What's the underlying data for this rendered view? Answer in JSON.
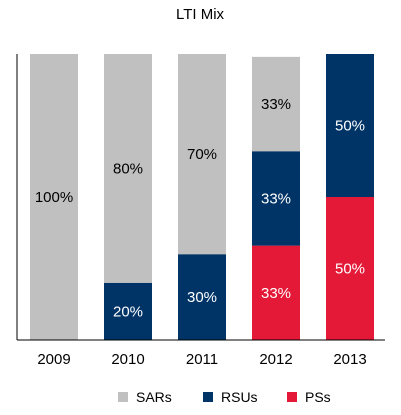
{
  "chart_data": {
    "type": "bar",
    "stacked": true,
    "percent_stacked": true,
    "title": "LTI Mix",
    "xlabel": "",
    "ylabel": "",
    "ylim": [
      0,
      100
    ],
    "grid": false,
    "legend_position": "bottom",
    "categories": [
      "2009",
      "2010",
      "2011",
      "2012",
      "2013"
    ],
    "series": [
      {
        "name": "PSs",
        "color": "#e31937",
        "values": [
          0,
          0,
          0,
          33,
          50
        ],
        "labels": [
          "",
          "",
          "",
          "33%",
          "50%"
        ],
        "label_color": "#ffffff"
      },
      {
        "name": "RSUs",
        "color": "#003366",
        "values": [
          0,
          20,
          30,
          33,
          50
        ],
        "labels": [
          "",
          "20%",
          "30%",
          "33%",
          "50%"
        ],
        "label_color": "#ffffff"
      },
      {
        "name": "SARs",
        "color": "#c0c0c0",
        "values": [
          100,
          80,
          70,
          33,
          0
        ],
        "labels": [
          "100%",
          "80%",
          "70%",
          "33%",
          ""
        ],
        "label_color": "#000000"
      }
    ],
    "legend_order": [
      "SARs",
      "RSUs",
      "PSs"
    ]
  }
}
